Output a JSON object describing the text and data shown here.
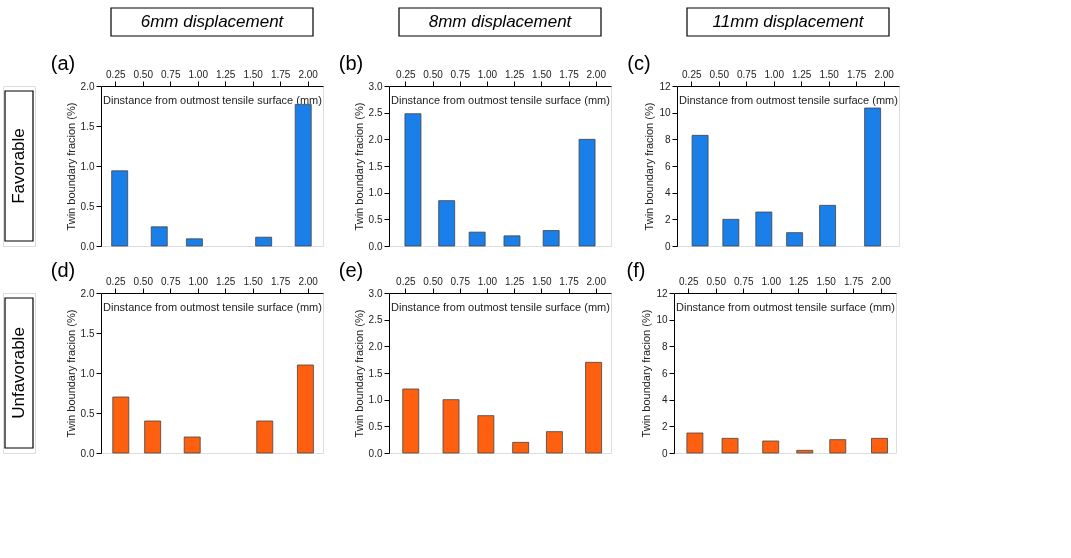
{
  "chart_data": [
    {
      "type": "bar",
      "title": "(a)",
      "subtitle": "6mm displacement",
      "annotations": [
        "Favorable"
      ],
      "xlabel": "Dinstance from outmost tensile surface (mm)",
      "ylabel": "Twin boundary fracion (%)",
      "color": "#1a7fe8",
      "x": [
        0.29,
        0.65,
        0.97,
        1.6,
        1.96
      ],
      "values": [
        0.94,
        0.24,
        0.09,
        0.11,
        1.77
      ],
      "xlim": [
        0.12,
        2.14
      ],
      "xticks": [
        0.25,
        {
          "value": 0.5,
          "label": "0.50"
        },
        0.75,
        {
          "value": 1,
          "label": "1.00"
        },
        1.25,
        {
          "value": 1.5,
          "label": "1.50"
        },
        1.75,
        {
          "value": 2,
          "label": "2.00"
        }
      ],
      "ylim": [
        0,
        2
      ],
      "yticks": [
        {
          "value": 0,
          "label": "0.0"
        },
        0.5,
        {
          "value": 1,
          "label": "1.0"
        },
        1.5,
        {
          "value": 2,
          "label": "2.0"
        }
      ]
    },
    {
      "type": "bar",
      "title": "(b)",
      "subtitle": "8mm displacement",
      "xlabel": "Dinstance from outmost tensile surface (mm)",
      "ylabel": "Twin boundary fracion (%)",
      "color": "#1a7fe8",
      "x": [
        0.32,
        0.63,
        0.91,
        1.23,
        1.59,
        1.92
      ],
      "values": [
        2.48,
        0.85,
        0.26,
        0.19,
        0.29,
        2.0
      ],
      "xlim": [
        0.1,
        2.14
      ],
      "xticks": [
        0.25,
        {
          "value": 0.5,
          "label": "0.50"
        },
        0.75,
        {
          "value": 1,
          "label": "1.00"
        },
        1.25,
        {
          "value": 1.5,
          "label": "1.50"
        },
        1.75,
        {
          "value": 2,
          "label": "2.00"
        }
      ],
      "ylim": [
        0,
        3
      ],
      "yticks": [
        {
          "value": 0,
          "label": "0.0"
        },
        0.5,
        {
          "value": 1,
          "label": "1.0"
        },
        1.5,
        {
          "value": 2,
          "label": "2.0"
        },
        2.5,
        {
          "value": 3,
          "label": "3.0"
        }
      ]
    },
    {
      "type": "bar",
      "title": "(c)",
      "subtitle": "11mm displacement",
      "xlabel": "Dinstance from outmost tensile surface (mm)",
      "ylabel": "Twin boundary fracion (%)",
      "color": "#1a7fe8",
      "x": [
        0.33,
        0.61,
        0.91,
        1.19,
        1.49,
        1.9
      ],
      "values": [
        8.3,
        2.0,
        2.55,
        1.0,
        3.05,
        10.35
      ],
      "xlim": [
        0.12,
        2.14
      ],
      "xticks": [
        0.25,
        {
          "value": 0.5,
          "label": "0.50"
        },
        0.75,
        {
          "value": 1,
          "label": "1.00"
        },
        1.25,
        {
          "value": 1.5,
          "label": "1.50"
        },
        1.75,
        {
          "value": 2,
          "label": "2.00"
        }
      ],
      "ylim": [
        0,
        12
      ],
      "yticks": [
        0,
        2,
        4,
        6,
        8,
        10,
        12
      ]
    },
    {
      "type": "bar",
      "title": "(d)",
      "annotations": [
        "Unfavorable"
      ],
      "xlabel": "Dinstance from outmost tensile surface (mm)",
      "ylabel": "Twin boundary fracion (%)",
      "color": "#ff6010",
      "x": [
        0.3,
        0.59,
        0.95,
        1.61,
        1.98
      ],
      "values": [
        0.7,
        0.4,
        0.2,
        0.4,
        1.1
      ],
      "xlim": [
        0.12,
        2.14
      ],
      "xticks": [
        0.25,
        {
          "value": 0.5,
          "label": "0.50"
        },
        0.75,
        {
          "value": 1,
          "label": "1.00"
        },
        1.25,
        {
          "value": 1.5,
          "label": "1.50"
        },
        1.75,
        {
          "value": 2,
          "label": "2.00"
        }
      ],
      "ylim": [
        0,
        2
      ],
      "yticks": [
        {
          "value": 0,
          "label": "0.0"
        },
        0.5,
        {
          "value": 1,
          "label": "1.0"
        },
        1.5,
        {
          "value": 2,
          "label": "2.0"
        }
      ]
    },
    {
      "type": "bar",
      "title": "(e)",
      "xlabel": "Dinstance from outmost tensile surface (mm)",
      "ylabel": "Twin boundary fracion (%)",
      "color": "#ff6010",
      "x": [
        0.3,
        0.67,
        0.99,
        1.31,
        1.62,
        1.98
      ],
      "values": [
        1.2,
        1.0,
        0.7,
        0.2,
        0.4,
        1.7
      ],
      "xlim": [
        0.1,
        2.14
      ],
      "xticks": [
        0.25,
        {
          "value": 0.5,
          "label": "0.50"
        },
        0.75,
        {
          "value": 1,
          "label": "1.00"
        },
        1.25,
        {
          "value": 1.5,
          "label": "1.50"
        },
        1.75,
        {
          "value": 2,
          "label": "2.00"
        }
      ],
      "ylim": [
        0,
        3
      ],
      "yticks": [
        {
          "value": 0,
          "label": "0.0"
        },
        0.5,
        {
          "value": 1,
          "label": "1.0"
        },
        1.5,
        {
          "value": 2,
          "label": "2.0"
        },
        2.5,
        {
          "value": 3,
          "label": "3.0"
        }
      ]
    },
    {
      "type": "bar",
      "title": "(f)",
      "xlabel": "Dinstance from outmost tensile surface (mm)",
      "ylabel": "Twin boundary fracion (%)",
      "color": "#ff6010",
      "x": [
        0.31,
        0.63,
        1.0,
        1.31,
        1.61,
        1.99
      ],
      "values": [
        1.5,
        1.1,
        0.9,
        0.2,
        1.0,
        1.1
      ],
      "xlim": [
        0.12,
        2.14
      ],
      "xticks": [
        0.25,
        {
          "value": 0.5,
          "label": "0.50"
        },
        0.75,
        {
          "value": 1,
          "label": "1.00"
        },
        1.25,
        {
          "value": 1.5,
          "label": "1.50"
        },
        1.75,
        {
          "value": 2,
          "label": "2.00"
        }
      ],
      "ylim": [
        0,
        12
      ],
      "yticks": [
        0,
        2,
        4,
        6,
        8,
        10,
        12
      ]
    }
  ]
}
